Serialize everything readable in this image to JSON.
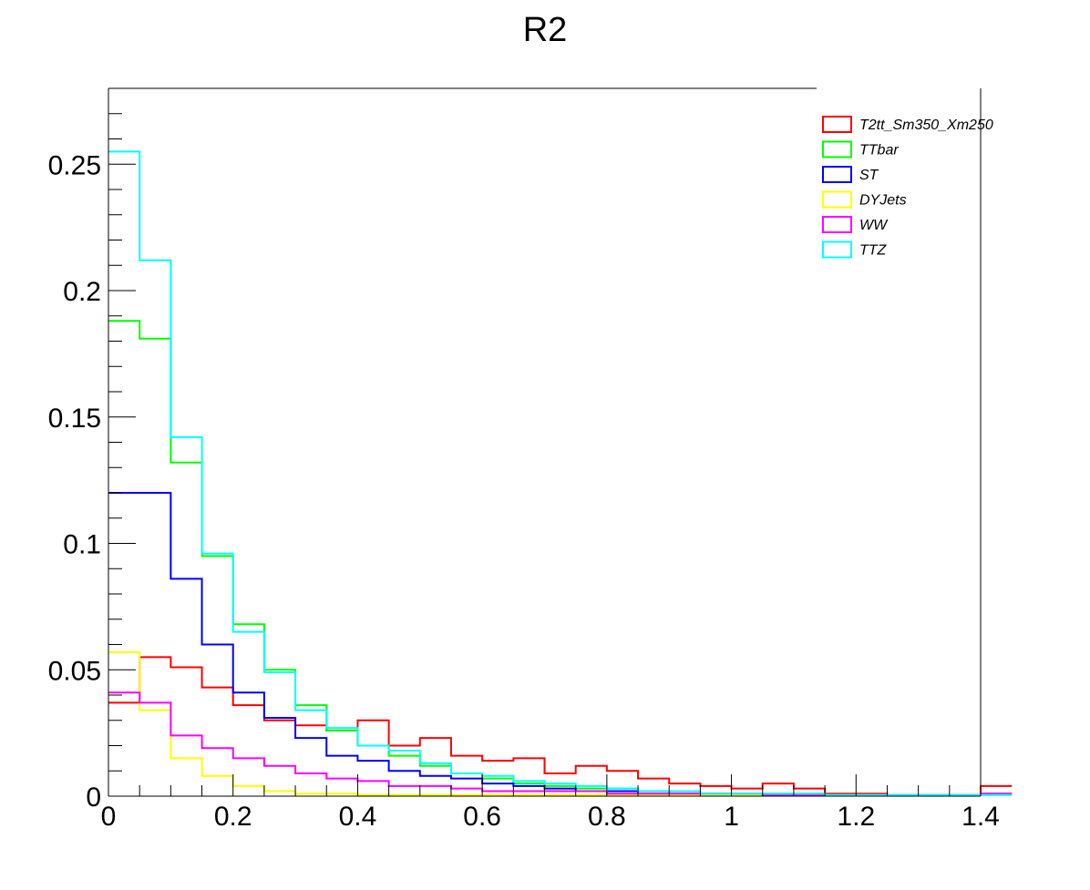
{
  "chart_data": {
    "type": "histogram",
    "title": "R2",
    "xlabel": "",
    "ylabel": "",
    "xlim": [
      0,
      1.4
    ],
    "ylim": [
      0,
      0.28
    ],
    "bin_width": 0.05,
    "x_tick_labels": [
      "0",
      "0.2",
      "0.4",
      "0.6",
      "0.8",
      "1",
      "1.2",
      "1.4"
    ],
    "x_tick_values": [
      0,
      0.2,
      0.4,
      0.6,
      0.8,
      1.0,
      1.2,
      1.4
    ],
    "y_tick_labels": [
      "0",
      "0.05",
      "0.1",
      "0.15",
      "0.2",
      "0.25"
    ],
    "y_tick_values": [
      0,
      0.05,
      0.1,
      0.15,
      0.2,
      0.25
    ],
    "legend_position": "top-right",
    "grid": false,
    "series": [
      {
        "name": "T2tt_Sm350_Xm250",
        "color": "#ff0000",
        "values": [
          0.037,
          0.055,
          0.051,
          0.043,
          0.036,
          0.03,
          0.028,
          0.026,
          0.03,
          0.02,
          0.023,
          0.016,
          0.014,
          0.015,
          0.009,
          0.012,
          0.01,
          0.007,
          0.005,
          0.004,
          0.003,
          0.005,
          0.003,
          0.001,
          0.001,
          0.0005,
          0.0005,
          0.0005,
          0.004
        ]
      },
      {
        "name": "TTbar",
        "color": "#00ff00",
        "values": [
          0.188,
          0.181,
          0.132,
          0.095,
          0.068,
          0.05,
          0.036,
          0.026,
          0.02,
          0.016,
          0.012,
          0.009,
          0.007,
          0.005,
          0.004,
          0.003,
          0.003,
          0.002,
          0.001,
          0.001,
          0.001,
          0.001,
          0.001,
          0.0005,
          0.0005,
          0.0005,
          0.0005,
          0.0005,
          0.0005
        ]
      },
      {
        "name": "ST",
        "color": "#0000ff",
        "values": [
          0.12,
          0.12,
          0.086,
          0.06,
          0.041,
          0.031,
          0.023,
          0.016,
          0.014,
          0.01,
          0.008,
          0.007,
          0.005,
          0.004,
          0.003,
          0.002,
          0.002,
          0.001,
          0.001,
          0.001,
          0.0005,
          0.0005,
          0.0005,
          0.0005,
          0.0005,
          0.0005,
          0.0005,
          0.0005,
          0.001
        ]
      },
      {
        "name": "DYJets",
        "color": "#ffff00",
        "values": [
          0.057,
          0.034,
          0.015,
          0.008,
          0.004,
          0.002,
          0.001,
          0.001,
          0.0005,
          0.0005,
          0.0005,
          0.0005,
          0.0005,
          0.0005,
          0.0005,
          0.0005,
          0.0005,
          0.0005,
          0.0005,
          0.0005,
          0.0005,
          0.0005,
          0.0005,
          0.0005,
          0.0005,
          0.0005,
          0.0005,
          0.0005,
          0.0005
        ]
      },
      {
        "name": "WW",
        "color": "#ff00ff",
        "values": [
          0.041,
          0.037,
          0.024,
          0.019,
          0.015,
          0.012,
          0.009,
          0.007,
          0.006,
          0.004,
          0.004,
          0.003,
          0.002,
          0.002,
          0.002,
          0.002,
          0.001,
          0.001,
          0.001,
          0.001,
          0.001,
          0.0005,
          0.0005,
          0.0005,
          0.0005,
          0.0005,
          0.0005,
          0.0005,
          0.001
        ]
      },
      {
        "name": "TTZ",
        "color": "#00ffff",
        "values": [
          0.255,
          0.212,
          0.142,
          0.096,
          0.065,
          0.049,
          0.034,
          0.027,
          0.02,
          0.018,
          0.013,
          0.009,
          0.008,
          0.006,
          0.005,
          0.004,
          0.003,
          0.002,
          0.002,
          0.001,
          0.001,
          0.001,
          0.001,
          0.0005,
          0.0005,
          0.0005,
          0.0005,
          0.0005,
          0.0005
        ]
      }
    ]
  }
}
